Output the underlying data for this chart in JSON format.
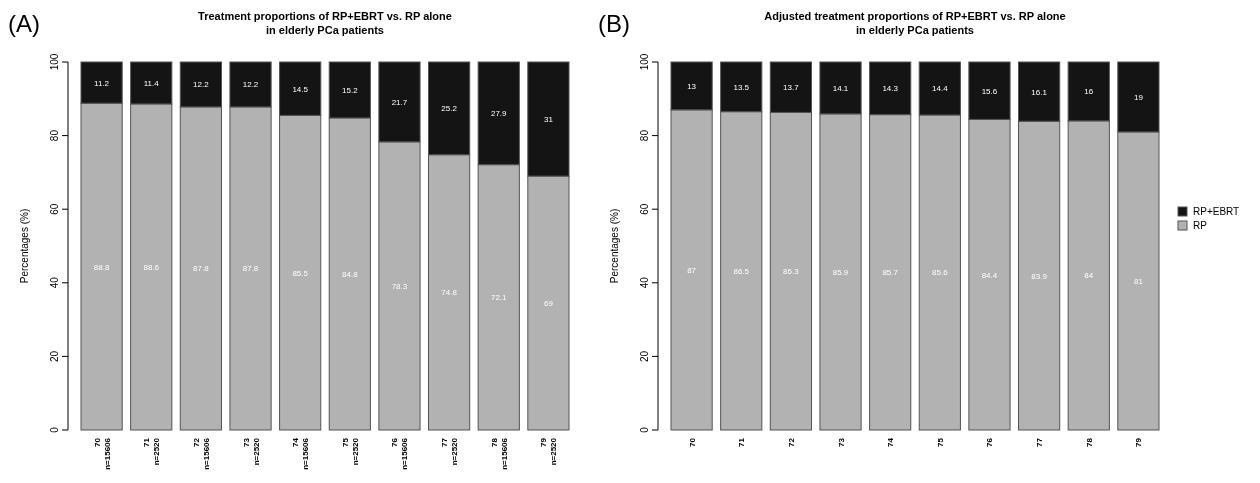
{
  "chart_data": [
    {
      "type": "bar",
      "title": "Treatment proportions of RP+EBRT vs. RP alone\nin elderly PCa patients",
      "ylabel": "Percentages (%)",
      "annotations": [
        "(A)"
      ],
      "categories": [
        "70\nn=15606",
        "71\nn=2520",
        "72\nn=15606",
        "73\nn=2520",
        "74\nn=15606",
        "75\nn=2520",
        "76\nn=15606",
        "77\nn=2520",
        "78\nn=15606",
        "79\nn=2520"
      ],
      "stacked": true,
      "data_labels": true,
      "legend": false,
      "ylim": [
        0,
        100
      ],
      "yticks": [
        0,
        20,
        40,
        60,
        80,
        100
      ],
      "series": [
        {
          "color": "#b2b2b2",
          "values": [
            88.8,
            88.6,
            87.8,
            87.8,
            85.5,
            84.8,
            78.3,
            74.8,
            72.1,
            69
          ]
        },
        {
          "color": "#141414",
          "values": [
            11.2,
            11.4,
            12.2,
            12.2,
            14.5,
            15.2,
            21.7,
            25.2,
            27.9,
            31
          ]
        }
      ]
    },
    {
      "type": "bar",
      "title": "Adjusted treatment proportions of RP+EBRT vs. RP alone\nin elderly PCa patients",
      "ylabel": "Percentages (%)",
      "annotations": [
        "(B)"
      ],
      "categories": [
        "70",
        "71",
        "72",
        "73",
        "74",
        "75",
        "76",
        "77",
        "78",
        "79"
      ],
      "stacked": true,
      "data_labels": true,
      "legend": "right",
      "ylim": [
        0,
        100
      ],
      "yticks": [
        0,
        20,
        40,
        60,
        80,
        100
      ],
      "series": [
        {
          "name": "RP",
          "color": "#b2b2b2",
          "values": [
            87,
            86.5,
            86.3,
            85.9,
            85.7,
            85.6,
            84.4,
            83.9,
            84,
            81
          ]
        },
        {
          "name": "RP+EBRT",
          "color": "#141414",
          "values": [
            13,
            13.5,
            13.7,
            14.1,
            14.3,
            14.4,
            15.6,
            16.1,
            16,
            19
          ]
        }
      ]
    }
  ]
}
